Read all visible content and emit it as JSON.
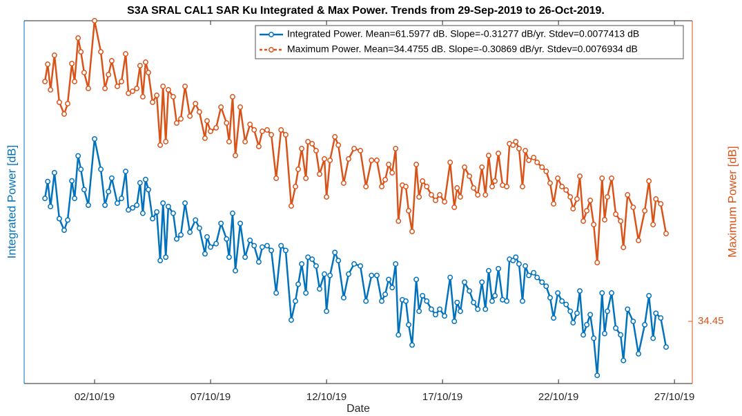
{
  "chart_data": {
    "type": "line",
    "title": "S3A SRAL CAL1 SAR Ku Integrated & Max Power. Trends from 29-Sep-2019 to 26-Oct-2019.",
    "xlabel": "Date",
    "ylabel": "Integrated Power [dB]",
    "y2label": "Maximum Power [dB]",
    "x": [
      -0.14,
      -0.02,
      0.1,
      0.27,
      0.48,
      0.69,
      0.84,
      1.02,
      1.14,
      1.29,
      1.41,
      1.55,
      1.73,
      2.0,
      2.27,
      2.45,
      2.6,
      2.74,
      2.98,
      3.16,
      3.34,
      3.46,
      3.64,
      3.82,
      3.96,
      4.08,
      4.2,
      4.32,
      4.5,
      4.68,
      4.83,
      4.95,
      5.07,
      5.18,
      5.39,
      5.54,
      5.72,
      5.9,
      6.11,
      6.35,
      6.52,
      6.76,
      6.85,
      7.0,
      7.24,
      7.45,
      7.69,
      7.8,
      7.95,
      8.07,
      8.28,
      8.49,
      8.7,
      8.88,
      9.08,
      9.23,
      9.44,
      9.62,
      9.83,
      10.04,
      10.24,
      10.48,
      10.66,
      10.78,
      10.93,
      11.11,
      11.2,
      11.38,
      11.55,
      11.7,
      11.91,
      12.0,
      12.15,
      12.36,
      12.51,
      12.74,
      12.95,
      13.19,
      13.46,
      13.7,
      13.94,
      14.17,
      14.38,
      14.53,
      14.68,
      14.83,
      14.98,
      15.1,
      15.27,
      15.42,
      15.54,
      15.69,
      15.87,
      15.99,
      16.14,
      16.32,
      16.52,
      16.7,
      16.88,
      17.09,
      17.33,
      17.51,
      17.63,
      17.77,
      17.95,
      18.16,
      18.34,
      18.52,
      18.7,
      18.85,
      18.99,
      19.14,
      19.26,
      19.41,
      19.59,
      19.77,
      19.89,
      20.04,
      20.16,
      20.3,
      20.45,
      20.57,
      20.72,
      20.93,
      21.08,
      21.29,
      21.47,
      21.64,
      21.79,
      21.97,
      22.15,
      22.33,
      22.51,
      22.63,
      22.8,
      22.92,
      23.07,
      23.22,
      23.37,
      23.52,
      23.67,
      23.88,
      23.99,
      24.11,
      24.29,
      24.47,
      24.68,
      24.8,
      24.98,
      25.22,
      25.45,
      25.72,
      25.9,
      26.08,
      26.2,
      26.41,
      26.64
    ],
    "series": [
      {
        "name": "Integrated Power. Mean=61.5977 dB. Slope=-0.31277 dB/yr. Stdev=0.0077413 dB",
        "color": "#0072bd",
        "values": [
          61.6024,
          61.6049,
          61.6012,
          61.6062,
          61.5994,
          61.5977,
          61.5992,
          61.605,
          61.6024,
          61.6087,
          61.6067,
          61.6037,
          61.6014,
          61.6112,
          61.6067,
          61.6014,
          61.6034,
          61.6054,
          61.6017,
          61.6024,
          61.6064,
          61.6007,
          61.601,
          61.6014,
          61.6047,
          61.6002,
          61.6052,
          61.6037,
          61.5994,
          61.6004,
          61.5932,
          61.6017,
          61.5937,
          61.6012,
          61.6002,
          61.5964,
          61.597,
          61.6017,
          61.5974,
          61.5992,
          61.598,
          61.5942,
          61.5967,
          61.5952,
          61.5957,
          61.5987,
          61.5964,
          61.5937,
          61.6002,
          61.5917,
          61.5987,
          61.5937,
          61.5962,
          61.5954,
          61.593,
          61.5952,
          61.5954,
          61.5947,
          61.5884,
          61.5954,
          61.5947,
          61.5844,
          61.5872,
          61.5897,
          61.5927,
          61.5884,
          61.5937,
          61.5934,
          61.5924,
          61.589,
          61.5912,
          61.5857,
          61.591,
          61.5944,
          61.5932,
          61.5877,
          61.5912,
          61.5927,
          61.5924,
          61.5872,
          61.591,
          61.591,
          61.5872,
          61.5882,
          61.5904,
          61.5892,
          61.5927,
          61.5822,
          61.5874,
          61.5872,
          61.5837,
          61.5807,
          61.5904,
          61.5857,
          61.588,
          61.5872,
          61.586,
          61.5852,
          61.586,
          61.585,
          61.5907,
          61.5842,
          61.587,
          61.5857,
          61.59,
          61.5887,
          61.587,
          61.586,
          61.59,
          61.586,
          61.5917,
          61.5872,
          61.588,
          61.592,
          61.5874,
          61.5872,
          61.5934,
          61.5932,
          61.5937,
          61.5927,
          61.5872,
          61.5924,
          61.591,
          61.5914,
          61.5907,
          61.59,
          61.5894,
          61.5877,
          61.5847,
          61.5884,
          61.5872,
          61.5867,
          61.5857,
          61.584,
          61.5854,
          61.5887,
          61.5822,
          61.5837,
          61.5852,
          61.5817,
          61.5762,
          61.5884,
          61.5824,
          61.5857,
          61.5884,
          61.5832,
          61.5822,
          61.5784,
          61.586,
          61.5842,
          61.5794,
          61.5837,
          61.588,
          61.5817,
          61.5854,
          61.5847,
          61.5804
        ]
      },
      {
        "name": "Maximum Power. Mean=34.4755 dB. Slope=-0.30869 dB/yr. Stdev=0.0076934 dB",
        "color": "#d95319",
        "axis": "y2",
        "values": [
          34.4847,
          34.4872,
          34.4835,
          34.4885,
          34.4817,
          34.48,
          34.4815,
          34.4873,
          34.4847,
          34.491,
          34.489,
          34.486,
          34.4837,
          34.4935,
          34.489,
          34.4837,
          34.4857,
          34.4877,
          34.484,
          34.4847,
          34.4887,
          34.483,
          34.4833,
          34.4837,
          34.487,
          34.4825,
          34.4875,
          34.486,
          34.4817,
          34.4827,
          34.4755,
          34.484,
          34.476,
          34.4835,
          34.4825,
          34.4787,
          34.4793,
          34.484,
          34.4797,
          34.4815,
          34.4803,
          34.4765,
          34.479,
          34.4775,
          34.478,
          34.481,
          34.4787,
          34.476,
          34.4825,
          34.474,
          34.481,
          34.476,
          34.4785,
          34.4777,
          34.4753,
          34.4775,
          34.4777,
          34.477,
          34.4707,
          34.4777,
          34.477,
          34.4667,
          34.4695,
          34.472,
          34.475,
          34.4707,
          34.476,
          34.4757,
          34.4747,
          34.4713,
          34.4735,
          34.468,
          34.4733,
          34.4767,
          34.4755,
          34.47,
          34.4735,
          34.475,
          34.4747,
          34.4695,
          34.4733,
          34.4733,
          34.4695,
          34.4705,
          34.4727,
          34.4715,
          34.475,
          34.4645,
          34.4697,
          34.4695,
          34.466,
          34.463,
          34.4727,
          34.468,
          34.4703,
          34.4695,
          34.4683,
          34.4675,
          34.4683,
          34.4673,
          34.473,
          34.4665,
          34.4693,
          34.468,
          34.4723,
          34.471,
          34.4693,
          34.4683,
          34.4723,
          34.4683,
          34.474,
          34.4695,
          34.4703,
          34.4743,
          34.4697,
          34.4695,
          34.4757,
          34.4755,
          34.476,
          34.475,
          34.4695,
          34.4747,
          34.4733,
          34.4737,
          34.473,
          34.4723,
          34.4717,
          34.47,
          34.467,
          34.4707,
          34.4695,
          34.469,
          34.468,
          34.4663,
          34.4677,
          34.471,
          34.4645,
          34.466,
          34.4675,
          34.464,
          34.4585,
          34.4707,
          34.4647,
          34.468,
          34.4707,
          34.4655,
          34.4645,
          34.4607,
          34.4683,
          34.4665,
          34.4617,
          34.466,
          34.4703,
          34.464,
          34.4677,
          34.467,
          34.4627
        ]
      }
    ],
    "xlim": [
      -1.036,
      27.77
    ],
    "xticks": [
      {
        "value": 2,
        "label": "02/10/19"
      },
      {
        "value": 7,
        "label": "07/10/19"
      },
      {
        "value": 12,
        "label": "12/10/19"
      },
      {
        "value": 17,
        "label": "17/10/19"
      },
      {
        "value": 22,
        "label": "22/10/19"
      },
      {
        "value": 27,
        "label": "27/10/19"
      }
    ],
    "ylim": [
      61.575,
      61.6287
    ],
    "y2lim": [
      34.441,
      34.4935
    ],
    "y2ticks": [
      34.45
    ],
    "legend": "upper right"
  }
}
